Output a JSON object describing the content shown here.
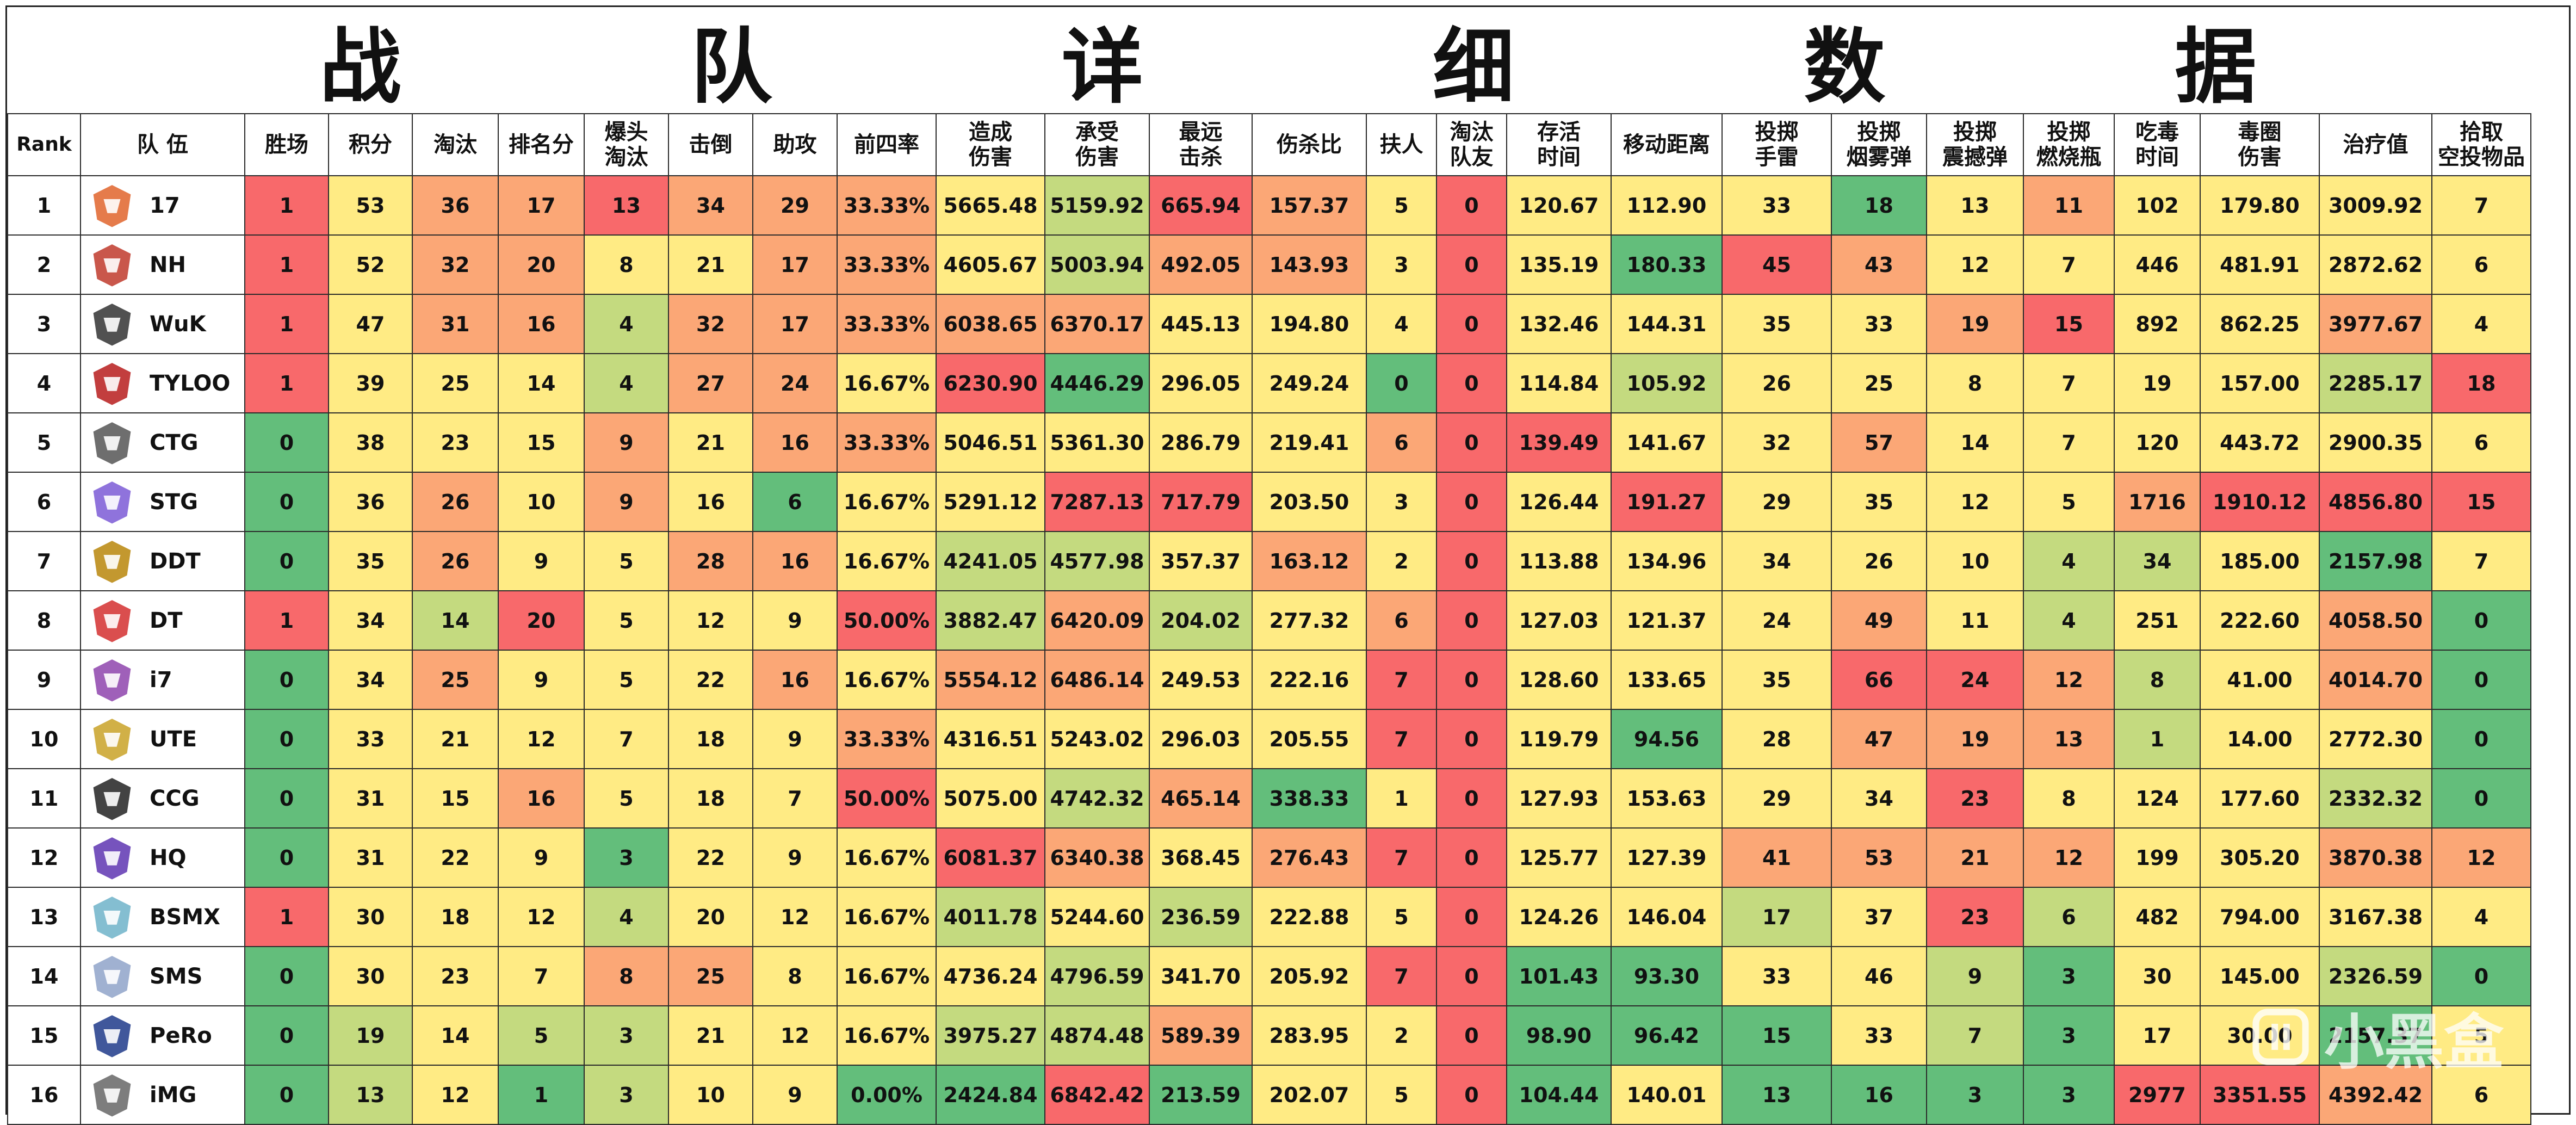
{
  "title": "战 队 详 细 数 据",
  "headers": [
    "Rank",
    "队 伍",
    "胜场",
    "积分",
    "淘汰",
    "排名分",
    "爆头\n淘汰",
    "击倒",
    "助攻",
    "前四率",
    "造成\n伤害",
    "承受\n伤害",
    "最远\n击杀",
    "伤杀比",
    "扶人",
    "淘汰\n队友",
    "存活\n时间",
    "移动距离",
    "投掷\n手雷",
    "投掷\n烟雾弹",
    "投掷\n震撼弹",
    "投掷\n燃烧瓶",
    "吃毒\n时间",
    "毒圈\n伤害",
    "治疗值",
    "拾取\n空投物品"
  ],
  "colors": {
    "red": "#f8696b",
    "orange": "#fba776",
    "yellow": "#ffeb84",
    "lightgreen": "#c4da7f",
    "green": "#63be7b"
  },
  "rows": [
    {
      "rank": "1",
      "team": "17",
      "logo": "17-logo-icon",
      "vals": [
        "1",
        "53",
        "36",
        "17",
        "13",
        "34",
        "29",
        "33.33%",
        "5665.48",
        "5159.92",
        "665.94",
        "157.37",
        "5",
        "0",
        "120.67",
        "112.90",
        "33",
        "18",
        "13",
        "11",
        "102",
        "179.80",
        "3009.92",
        "7"
      ]
    },
    {
      "rank": "2",
      "team": "NH",
      "logo": "nh-logo-icon",
      "vals": [
        "1",
        "52",
        "32",
        "20",
        "8",
        "21",
        "17",
        "33.33%",
        "4605.67",
        "5003.94",
        "492.05",
        "143.93",
        "3",
        "0",
        "135.19",
        "180.33",
        "45",
        "43",
        "12",
        "7",
        "446",
        "481.91",
        "2872.62",
        "6"
      ]
    },
    {
      "rank": "3",
      "team": "WuK",
      "logo": "wuk-logo-icon",
      "vals": [
        "1",
        "47",
        "31",
        "16",
        "4",
        "32",
        "17",
        "33.33%",
        "6038.65",
        "6370.17",
        "445.13",
        "194.80",
        "4",
        "0",
        "132.46",
        "144.31",
        "35",
        "33",
        "19",
        "15",
        "892",
        "862.25",
        "3977.67",
        "4"
      ]
    },
    {
      "rank": "4",
      "team": "TYLOO",
      "logo": "tyloo-logo-icon",
      "vals": [
        "1",
        "39",
        "25",
        "14",
        "4",
        "27",
        "24",
        "16.67%",
        "6230.90",
        "4446.29",
        "296.05",
        "249.24",
        "0",
        "0",
        "114.84",
        "105.92",
        "26",
        "25",
        "8",
        "7",
        "19",
        "157.00",
        "2285.17",
        "18"
      ]
    },
    {
      "rank": "5",
      "team": "CTG",
      "logo": "ctg-logo-icon",
      "vals": [
        "0",
        "38",
        "23",
        "15",
        "9",
        "21",
        "16",
        "33.33%",
        "5046.51",
        "5361.30",
        "286.79",
        "219.41",
        "6",
        "0",
        "139.49",
        "141.67",
        "32",
        "57",
        "14",
        "7",
        "120",
        "443.72",
        "2900.35",
        "6"
      ]
    },
    {
      "rank": "6",
      "team": "STG",
      "logo": "stg-logo-icon",
      "vals": [
        "0",
        "36",
        "26",
        "10",
        "9",
        "16",
        "6",
        "16.67%",
        "5291.12",
        "7287.13",
        "717.79",
        "203.50",
        "3",
        "0",
        "126.44",
        "191.27",
        "29",
        "35",
        "12",
        "5",
        "1716",
        "1910.12",
        "4856.80",
        "15"
      ]
    },
    {
      "rank": "7",
      "team": "DDT",
      "logo": "ddt-logo-icon",
      "vals": [
        "0",
        "35",
        "26",
        "9",
        "5",
        "28",
        "16",
        "16.67%",
        "4241.05",
        "4577.98",
        "357.37",
        "163.12",
        "2",
        "0",
        "113.88",
        "134.96",
        "34",
        "26",
        "10",
        "4",
        "34",
        "185.00",
        "2157.98",
        "7"
      ]
    },
    {
      "rank": "8",
      "team": "DT",
      "logo": "dt-logo-icon",
      "vals": [
        "1",
        "34",
        "14",
        "20",
        "5",
        "12",
        "9",
        "50.00%",
        "3882.47",
        "6420.09",
        "204.02",
        "277.32",
        "6",
        "0",
        "127.03",
        "121.37",
        "24",
        "49",
        "11",
        "4",
        "251",
        "222.60",
        "4058.50",
        "0"
      ]
    },
    {
      "rank": "9",
      "team": "i7",
      "logo": "i7-logo-icon",
      "vals": [
        "0",
        "34",
        "25",
        "9",
        "5",
        "22",
        "16",
        "16.67%",
        "5554.12",
        "6486.14",
        "249.53",
        "222.16",
        "7",
        "0",
        "128.60",
        "133.65",
        "35",
        "66",
        "24",
        "12",
        "8",
        "41.00",
        "4014.70",
        "0"
      ]
    },
    {
      "rank": "10",
      "team": "UTE",
      "logo": "ute-logo-icon",
      "vals": [
        "0",
        "33",
        "21",
        "12",
        "7",
        "18",
        "9",
        "33.33%",
        "4316.51",
        "5243.02",
        "296.03",
        "205.55",
        "7",
        "0",
        "119.79",
        "94.56",
        "28",
        "47",
        "19",
        "13",
        "1",
        "14.00",
        "2772.30",
        "0"
      ]
    },
    {
      "rank": "11",
      "team": "CCG",
      "logo": "ccg-logo-icon",
      "vals": [
        "0",
        "31",
        "15",
        "16",
        "5",
        "18",
        "7",
        "50.00%",
        "5075.00",
        "4742.32",
        "465.14",
        "338.33",
        "1",
        "0",
        "127.93",
        "153.63",
        "29",
        "34",
        "23",
        "8",
        "124",
        "177.60",
        "2332.32",
        "0"
      ]
    },
    {
      "rank": "12",
      "team": "HQ",
      "logo": "hq-logo-icon",
      "vals": [
        "0",
        "31",
        "22",
        "9",
        "3",
        "22",
        "9",
        "16.67%",
        "6081.37",
        "6340.38",
        "368.45",
        "276.43",
        "7",
        "0",
        "125.77",
        "127.39",
        "41",
        "53",
        "21",
        "12",
        "199",
        "305.20",
        "3870.38",
        "12"
      ]
    },
    {
      "rank": "13",
      "team": "BSMX",
      "logo": "bsmx-logo-icon",
      "vals": [
        "1",
        "30",
        "18",
        "12",
        "4",
        "20",
        "12",
        "16.67%",
        "4011.78",
        "5244.60",
        "236.59",
        "222.88",
        "5",
        "0",
        "124.26",
        "146.04",
        "17",
        "37",
        "23",
        "6",
        "482",
        "794.00",
        "3167.38",
        "4"
      ]
    },
    {
      "rank": "14",
      "team": "SMS",
      "logo": "sms-logo-icon",
      "vals": [
        "0",
        "30",
        "23",
        "7",
        "8",
        "25",
        "8",
        "16.67%",
        "4736.24",
        "4796.59",
        "341.70",
        "205.92",
        "7",
        "0",
        "101.43",
        "93.30",
        "33",
        "46",
        "9",
        "3",
        "30",
        "145.00",
        "2326.59",
        "0"
      ]
    },
    {
      "rank": "15",
      "team": "PeRo",
      "logo": "pero-logo-icon",
      "vals": [
        "0",
        "19",
        "14",
        "5",
        "3",
        "21",
        "12",
        "16.67%",
        "3975.27",
        "4874.48",
        "589.39",
        "283.95",
        "2",
        "0",
        "98.90",
        "96.42",
        "15",
        "33",
        "7",
        "3",
        "17",
        "30.00",
        "2157.37",
        "5"
      ]
    },
    {
      "rank": "16",
      "team": "iMG",
      "logo": "img-logo-icon",
      "vals": [
        "0",
        "13",
        "12",
        "1",
        "3",
        "10",
        "9",
        "0.00%",
        "2424.84",
        "6842.42",
        "213.59",
        "202.07",
        "5",
        "0",
        "104.44",
        "140.01",
        "13",
        "16",
        "3",
        "3",
        "2977",
        "3351.55",
        "4392.42",
        "6"
      ]
    }
  ],
  "cell_colors": [
    [
      "red",
      "yellow",
      "orange",
      "orange",
      "red",
      "orange",
      "orange",
      "orange",
      "yellow",
      "lightgreen",
      "red",
      "orange",
      "yellow",
      "red",
      "yellow",
      "yellow",
      "yellow",
      "green",
      "yellow",
      "orange",
      "yellow",
      "yellow",
      "yellow",
      "yellow"
    ],
    [
      "red",
      "yellow",
      "orange",
      "orange",
      "yellow",
      "yellow",
      "orange",
      "orange",
      "yellow",
      "lightgreen",
      "orange",
      "orange",
      "yellow",
      "red",
      "yellow",
      "green",
      "red",
      "orange",
      "yellow",
      "yellow",
      "yellow",
      "yellow",
      "yellow",
      "yellow"
    ],
    [
      "red",
      "yellow",
      "orange",
      "orange",
      "lightgreen",
      "orange",
      "orange",
      "orange",
      "orange",
      "orange",
      "yellow",
      "yellow",
      "yellow",
      "red",
      "yellow",
      "yellow",
      "yellow",
      "yellow",
      "orange",
      "red",
      "yellow",
      "yellow",
      "orange",
      "yellow"
    ],
    [
      "red",
      "yellow",
      "yellow",
      "yellow",
      "lightgreen",
      "orange",
      "orange",
      "yellow",
      "red",
      "green",
      "yellow",
      "yellow",
      "green",
      "red",
      "yellow",
      "lightgreen",
      "yellow",
      "yellow",
      "yellow",
      "yellow",
      "yellow",
      "yellow",
      "lightgreen",
      "red"
    ],
    [
      "green",
      "yellow",
      "yellow",
      "yellow",
      "orange",
      "yellow",
      "orange",
      "orange",
      "yellow",
      "yellow",
      "yellow",
      "yellow",
      "orange",
      "red",
      "red",
      "yellow",
      "yellow",
      "orange",
      "yellow",
      "yellow",
      "yellow",
      "yellow",
      "yellow",
      "yellow"
    ],
    [
      "green",
      "yellow",
      "orange",
      "yellow",
      "orange",
      "yellow",
      "green",
      "yellow",
      "yellow",
      "red",
      "red",
      "yellow",
      "yellow",
      "red",
      "yellow",
      "red",
      "yellow",
      "yellow",
      "yellow",
      "yellow",
      "orange",
      "red",
      "red",
      "red"
    ],
    [
      "green",
      "yellow",
      "orange",
      "yellow",
      "yellow",
      "orange",
      "orange",
      "yellow",
      "lightgreen",
      "lightgreen",
      "yellow",
      "orange",
      "yellow",
      "red",
      "yellow",
      "yellow",
      "yellow",
      "yellow",
      "yellow",
      "lightgreen",
      "lightgreen",
      "yellow",
      "green",
      "yellow"
    ],
    [
      "red",
      "yellow",
      "lightgreen",
      "red",
      "yellow",
      "yellow",
      "yellow",
      "red",
      "lightgreen",
      "orange",
      "lightgreen",
      "yellow",
      "orange",
      "red",
      "yellow",
      "yellow",
      "yellow",
      "orange",
      "yellow",
      "lightgreen",
      "yellow",
      "yellow",
      "orange",
      "green"
    ],
    [
      "green",
      "yellow",
      "orange",
      "yellow",
      "yellow",
      "yellow",
      "orange",
      "yellow",
      "orange",
      "orange",
      "yellow",
      "yellow",
      "red",
      "red",
      "yellow",
      "yellow",
      "yellow",
      "red",
      "red",
      "orange",
      "lightgreen",
      "yellow",
      "orange",
      "green"
    ],
    [
      "green",
      "yellow",
      "yellow",
      "yellow",
      "yellow",
      "yellow",
      "yellow",
      "orange",
      "yellow",
      "yellow",
      "yellow",
      "yellow",
      "red",
      "red",
      "yellow",
      "green",
      "yellow",
      "orange",
      "orange",
      "orange",
      "lightgreen",
      "yellow",
      "yellow",
      "green"
    ],
    [
      "green",
      "yellow",
      "yellow",
      "orange",
      "yellow",
      "yellow",
      "yellow",
      "red",
      "yellow",
      "lightgreen",
      "orange",
      "green",
      "yellow",
      "red",
      "yellow",
      "yellow",
      "yellow",
      "yellow",
      "red",
      "yellow",
      "yellow",
      "yellow",
      "lightgreen",
      "green"
    ],
    [
      "green",
      "yellow",
      "yellow",
      "yellow",
      "green",
      "yellow",
      "yellow",
      "yellow",
      "red",
      "orange",
      "yellow",
      "orange",
      "red",
      "red",
      "yellow",
      "yellow",
      "orange",
      "orange",
      "orange",
      "orange",
      "yellow",
      "yellow",
      "orange",
      "orange"
    ],
    [
      "red",
      "yellow",
      "yellow",
      "yellow",
      "lightgreen",
      "yellow",
      "yellow",
      "yellow",
      "lightgreen",
      "yellow",
      "lightgreen",
      "yellow",
      "yellow",
      "red",
      "yellow",
      "yellow",
      "lightgreen",
      "yellow",
      "red",
      "lightgreen",
      "yellow",
      "yellow",
      "yellow",
      "yellow"
    ],
    [
      "green",
      "yellow",
      "yellow",
      "yellow",
      "orange",
      "orange",
      "yellow",
      "yellow",
      "yellow",
      "lightgreen",
      "yellow",
      "yellow",
      "red",
      "red",
      "green",
      "green",
      "yellow",
      "yellow",
      "lightgreen",
      "green",
      "yellow",
      "yellow",
      "lightgreen",
      "green"
    ],
    [
      "green",
      "lightgreen",
      "yellow",
      "lightgreen",
      "lightgreen",
      "yellow",
      "yellow",
      "yellow",
      "lightgreen",
      "lightgreen",
      "orange",
      "yellow",
      "yellow",
      "red",
      "green",
      "green",
      "green",
      "yellow",
      "lightgreen",
      "green",
      "yellow",
      "yellow",
      "green",
      "yellow"
    ],
    [
      "green",
      "lightgreen",
      "yellow",
      "green",
      "lightgreen",
      "yellow",
      "yellow",
      "green",
      "green",
      "red",
      "green",
      "yellow",
      "yellow",
      "red",
      "green",
      "yellow",
      "green",
      "green",
      "green",
      "green",
      "red",
      "red",
      "orange",
      "yellow"
    ]
  ],
  "watermark": "小黑盒"
}
